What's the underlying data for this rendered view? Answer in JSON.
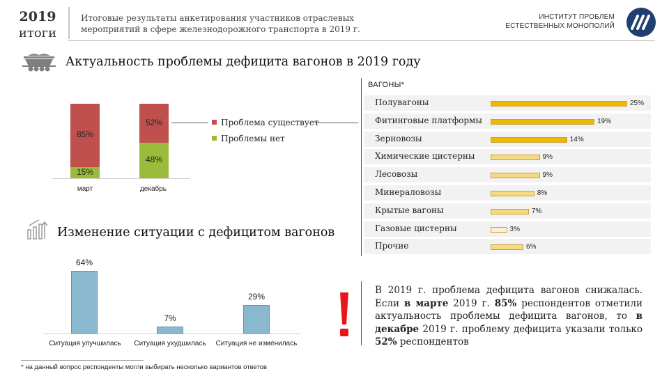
{
  "header": {
    "year": "2019",
    "year_sub": "итоги",
    "subtitle_line1": "Итоговые результаты анкетирования участников отраслевых",
    "subtitle_line2": "мероприятий в сфере железнодорожного транспорта в 2019 г.",
    "institute_line1": "ИНСТИТУТ ПРОБЛЕМ",
    "institute_line2": "ЕСТЕСТВЕННЫХ МОНОПОЛИЙ",
    "logo_icon": "ipem-logo-icon",
    "logo_color": "#1f3f6e"
  },
  "section1": {
    "icon": "railcar-icon",
    "title": "Актуальность проблемы дефицита вагонов в 2019 году"
  },
  "section2": {
    "icon": "growth-chart-icon",
    "title": "Изменение ситуации с дефицитом вагонов"
  },
  "chart_data": [
    {
      "type": "bar",
      "stacked": true,
      "categories": [
        "март",
        "декабрь"
      ],
      "series": [
        {
          "name": "Проблемы нет",
          "values": [
            15,
            48
          ],
          "labels": [
            "15%",
            "48%"
          ],
          "color": "#9bbb3a"
        },
        {
          "name": "Проблема существует",
          "values": [
            85,
            52
          ],
          "labels": [
            "85%",
            "52%"
          ],
          "color": "#c0504d"
        }
      ],
      "ylim": [
        0,
        100
      ],
      "legend": "right"
    },
    {
      "type": "bar",
      "title": "ВАГОНЫ*",
      "orientation": "horizontal",
      "categories": [
        "Полувагоны",
        "Фитинговые платформы",
        "Зерновозы",
        "Химические цистерны",
        "Лесовозы",
        "Минераловозы",
        "Крытые вагоны",
        "Газовые цистерны",
        "Прочие"
      ],
      "values": [
        25,
        19,
        14,
        9,
        9,
        8,
        7,
        3,
        6
      ],
      "labels": [
        "25%",
        "19%",
        "14%",
        "9%",
        "9%",
        "8%",
        "7%",
        "3%",
        "6%"
      ],
      "colors": {
        "high": "#f0b800",
        "low": "#f6da80",
        "lowest": "#f8f0d8"
      },
      "xlim": [
        0,
        25
      ]
    },
    {
      "type": "bar",
      "categories": [
        "Ситуация улучшилась",
        "Ситуация ухудшилась",
        "Ситуация не изменилась"
      ],
      "values": [
        64,
        7,
        29
      ],
      "labels": [
        "64%",
        "7%",
        "29%"
      ],
      "color": "#89b8cf",
      "ylim": [
        0,
        64
      ]
    }
  ],
  "note": {
    "icon": "exclamation-icon",
    "accent_color": "#e8161b",
    "parts": [
      {
        "t": "В 2019 г. проблема дефицита вагонов снижалась. Если ",
        "b": false
      },
      {
        "t": "в марте",
        "b": true
      },
      {
        "t": " 2019 г. ",
        "b": false
      },
      {
        "t": "85%",
        "b": true
      },
      {
        "t": " респондентов отметили актуальность проблемы дефицита вагонов, то ",
        "b": false
      },
      {
        "t": "в декабре",
        "b": true
      },
      {
        "t": " 2019 г. проблему дефицита указали только ",
        "b": false
      },
      {
        "t": "52%",
        "b": true
      },
      {
        "t": " респондентов",
        "b": false
      }
    ]
  },
  "footnote": "*  на данный вопрос респонденты могли выбирать несколько вариантов ответов"
}
